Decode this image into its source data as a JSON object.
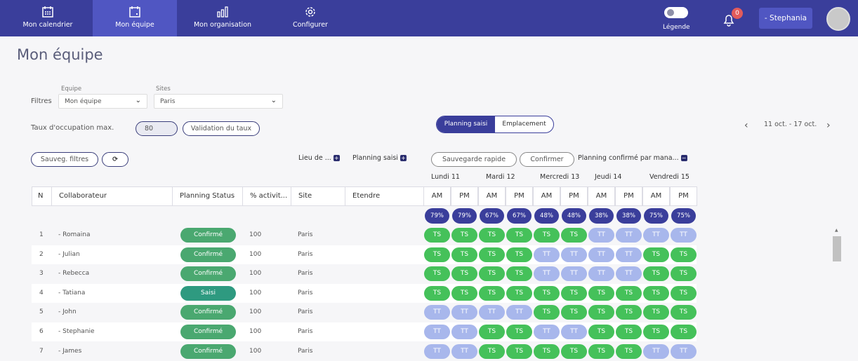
{
  "nav": {
    "tabs": [
      {
        "label": "Mon calendrier",
        "icon": "calendar-icon"
      },
      {
        "label": "Mon équipe",
        "icon": "calendar-day-icon",
        "active": true
      },
      {
        "label": "Mon organisation",
        "icon": "bar-chart-icon"
      },
      {
        "label": "Configurer",
        "icon": "gear-icon"
      }
    ],
    "legend_label": "Légende",
    "notif_count": "0",
    "user": "- Stephania"
  },
  "page": {
    "title": "Mon équipe"
  },
  "filters": {
    "label": "Filtres",
    "team_label": "Equipe",
    "team_value": "Mon équipe",
    "sites_label": "Sites",
    "sites_value": "Paris",
    "occupancy_label": "Taux d'occupation max.",
    "occupancy_value": "80",
    "validate": "Validation du taux",
    "save_filters": "Sauveg. filtres"
  },
  "view": {
    "planning": "Planning saisi",
    "location": "Emplacement",
    "week": "11 oct. - 17 oct."
  },
  "toolbar": {
    "lieu": "Lieu de ...",
    "planning_saisi": "Planning saisi",
    "quick_save": "Sauvegarde rapide",
    "confirm": "Confirmer",
    "confirmed_by": "Planning confirmé par mana..."
  },
  "table": {
    "headers": [
      "N",
      "Collaborateur",
      "Planning Status",
      "% activit...",
      "Site",
      "Etendre"
    ],
    "days": [
      "Lundi 11",
      "Mardi 12",
      "Mercredi 13",
      "Jeudi 14",
      "Vendredi 15"
    ],
    "halves": [
      "AM",
      "PM",
      "AM",
      "PM",
      "AM",
      "PM",
      "AM",
      "PM",
      "AM",
      "PM"
    ],
    "occupancy": [
      "79%",
      "79%",
      "67%",
      "67%",
      "48%",
      "48%",
      "38%",
      "38%",
      "75%",
      "75%"
    ],
    "rows": [
      {
        "n": "1",
        "name": "- Romaina",
        "status": "Confirmé",
        "activity": "100",
        "site": "Paris",
        "slots": [
          "TS",
          "TS",
          "TS",
          "TS",
          "TS",
          "TS",
          "TT",
          "TT",
          "TT",
          "TT"
        ]
      },
      {
        "n": "2",
        "name": "- Julian",
        "status": "Confirmé",
        "activity": "100",
        "site": "Paris",
        "slots": [
          "TS",
          "TS",
          "TS",
          "TS",
          "TT",
          "TT",
          "TT",
          "TT",
          "TS",
          "TS"
        ]
      },
      {
        "n": "3",
        "name": "- Rebecca",
        "status": "Confirmé",
        "activity": "100",
        "site": "Paris",
        "slots": [
          "TS",
          "TS",
          "TS",
          "TS",
          "TT",
          "TT",
          "TT",
          "TT",
          "TS",
          "TS"
        ]
      },
      {
        "n": "4",
        "name": "- Tatiana",
        "status": "Saisi",
        "activity": "100",
        "site": "Paris",
        "slots": [
          "TS",
          "TS",
          "TS",
          "TS",
          "TS",
          "TS",
          "TS",
          "TS",
          "TS",
          "TS"
        ]
      },
      {
        "n": "5",
        "name": "- John",
        "status": "Confirmé",
        "activity": "100",
        "site": "Paris",
        "slots": [
          "TT",
          "TT",
          "TT",
          "TT",
          "TS",
          "TS",
          "TS",
          "TS",
          "TS",
          "TS"
        ]
      },
      {
        "n": "6",
        "name": "- Stephanie",
        "status": "Confirmé",
        "activity": "100",
        "site": "Paris",
        "slots": [
          "TT",
          "TT",
          "TS",
          "TS",
          "TT",
          "TT",
          "TS",
          "TS",
          "TS",
          "TS"
        ]
      },
      {
        "n": "7",
        "name": "- James",
        "status": "Confirmé",
        "activity": "100",
        "site": "Paris",
        "slots": [
          "TT",
          "TT",
          "TS",
          "TS",
          "TS",
          "TS",
          "TS",
          "TS",
          "TT",
          "TT"
        ]
      }
    ]
  },
  "colors": {
    "nav": "#3a3e9b",
    "ts": "#45c15a",
    "tt": "#a8b7ec",
    "confirmed": "#4aa870",
    "saisi": "#2e9a80"
  }
}
